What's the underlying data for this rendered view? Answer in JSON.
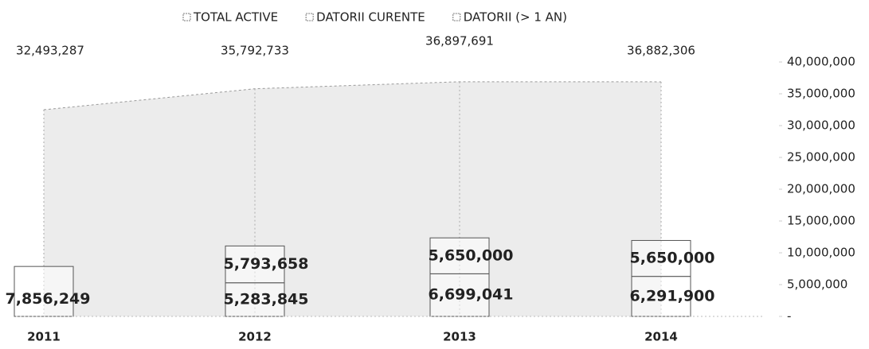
{
  "chart_data": {
    "type": "combo",
    "categories": [
      "2011",
      "2012",
      "2013",
      "2014"
    ],
    "series": [
      {
        "name": "TOTAL ACTIVE",
        "type": "area",
        "color": "#e4e4e4",
        "values": [
          32493287,
          35792733,
          36897691,
          36882306
        ],
        "value_labels": [
          "32,493,287",
          "35,792,733",
          "36,897,691",
          "36,882,306"
        ]
      },
      {
        "name": "DATORII CURENTE",
        "type": "bar",
        "color": "#ffffff",
        "values": [
          7856249,
          5283845,
          6699041,
          6291900
        ],
        "value_labels": [
          "7,856,249",
          "5,283,845",
          "6,699,041",
          "6,291,900"
        ]
      },
      {
        "name": "DATORII (> 1 AN)",
        "type": "bar",
        "color": "#ffffff",
        "values": [
          null,
          5793658,
          5650000,
          5650000
        ],
        "value_labels": [
          null,
          "5,793,658",
          "5,650,000",
          "5,650,000"
        ]
      }
    ],
    "ylim": [
      0,
      40000000
    ],
    "yticks": [
      {
        "value": 0,
        "label": "-"
      },
      {
        "value": 5000000,
        "label": "5,000,000"
      },
      {
        "value": 10000000,
        "label": "10,000,000"
      },
      {
        "value": 15000000,
        "label": "15,000,000"
      },
      {
        "value": 20000000,
        "label": "20,000,000"
      },
      {
        "value": 25000000,
        "label": "25,000,000"
      },
      {
        "value": 30000000,
        "label": "30,000,000"
      },
      {
        "value": 35000000,
        "label": "35,000,000"
      },
      {
        "value": 40000000,
        "label": "40,000,000"
      }
    ],
    "legend": "top"
  }
}
